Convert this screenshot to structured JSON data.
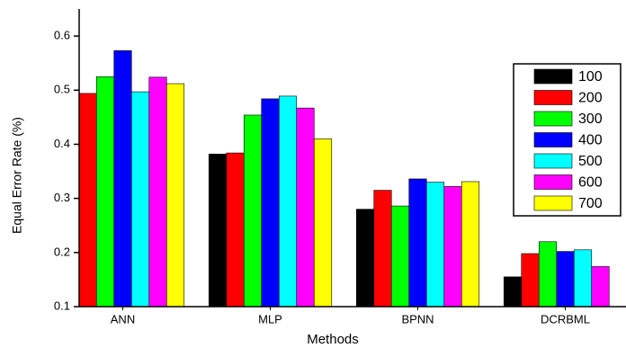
{
  "chart_data": {
    "type": "bar",
    "x_label": "Methods",
    "y_label": "Equal Error Rate (%)",
    "categories": [
      "ANN",
      "MLP",
      "BPNN",
      "DCRBML"
    ],
    "series": [
      {
        "name": "100",
        "color": "#000000",
        "values": [
          null,
          0.382,
          0.28,
          0.155
        ]
      },
      {
        "name": "200",
        "color": "#ff0000",
        "values": [
          0.494,
          0.384,
          0.315,
          0.198
        ]
      },
      {
        "name": "300",
        "color": "#00ff00",
        "values": [
          0.525,
          0.454,
          0.286,
          0.22
        ]
      },
      {
        "name": "400",
        "color": "#0000ff",
        "values": [
          0.573,
          0.484,
          0.336,
          0.202
        ]
      },
      {
        "name": "500",
        "color": "#00ffff",
        "values": [
          0.497,
          0.489,
          0.33,
          0.205
        ]
      },
      {
        "name": "600",
        "color": "#ff00ff",
        "values": [
          0.524,
          0.467,
          0.322,
          0.174
        ]
      },
      {
        "name": "700",
        "color": "#ffff00",
        "values": [
          0.512,
          0.41,
          0.331,
          null
        ]
      }
    ],
    "ylim": [
      0.1,
      0.65
    ],
    "yticks": [
      0.1,
      0.2,
      0.3,
      0.4,
      0.5,
      0.6
    ],
    "legend": "upper right"
  }
}
